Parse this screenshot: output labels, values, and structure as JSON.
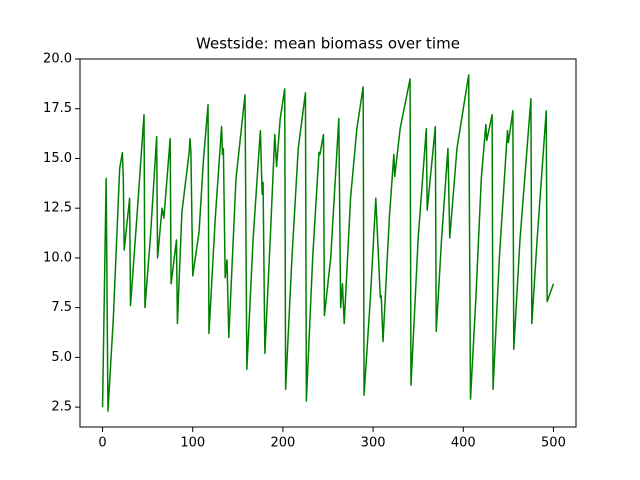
{
  "chart_data": {
    "type": "line",
    "title": "Westside: mean biomass over time",
    "color": "#008000",
    "x": [
      0,
      4,
      6,
      12,
      19,
      22,
      23,
      24,
      30,
      31,
      38,
      46,
      47,
      53,
      60,
      61,
      66,
      68,
      75,
      76,
      82,
      83,
      88,
      96,
      97,
      98,
      100,
      107,
      112,
      117,
      118,
      125,
      132,
      133,
      134,
      136,
      138,
      140,
      148,
      158,
      160,
      167,
      175,
      177,
      178,
      180,
      186,
      191,
      193,
      197,
      202,
      203,
      210,
      217,
      225,
      226,
      233,
      240,
      241,
      245,
      246,
      253,
      262,
      264,
      266,
      268,
      275,
      282,
      289,
      290,
      297,
      303,
      308,
      309,
      311,
      318,
      323,
      324,
      330,
      341,
      342,
      350,
      359,
      360,
      369,
      370,
      376,
      383,
      385,
      393,
      406,
      408,
      414,
      420,
      425,
      426,
      432,
      433,
      440,
      449,
      450,
      455,
      456,
      463,
      475,
      476,
      482,
      492,
      493,
      500
    ],
    "values": [
      2.5,
      14,
      2.3,
      7,
      14.5,
      15.3,
      14,
      10.4,
      13,
      7.6,
      12,
      17.2,
      7.5,
      11,
      16.1,
      10,
      12.5,
      12,
      16,
      8.7,
      10.9,
      6.7,
      12.3,
      15.3,
      16,
      15.3,
      9.1,
      11.3,
      15,
      17.7,
      6.2,
      12,
      16.6,
      15.2,
      15.5,
      9,
      9.9,
      6,
      14,
      18.2,
      4.4,
      11,
      16.4,
      13.2,
      13.8,
      5.2,
      11,
      16.2,
      14.6,
      17,
      18.5,
      3.4,
      10,
      15.5,
      18.3,
      2.8,
      10,
      15.3,
      15.2,
      16.2,
      7.1,
      10,
      17,
      7.5,
      8.7,
      6.7,
      13,
      16.5,
      18.6,
      3.1,
      8,
      13,
      8,
      8.1,
      5.8,
      12,
      15.2,
      14.1,
      16.5,
      19,
      3.6,
      11,
      16.5,
      12.4,
      16.6,
      6.3,
      11,
      15.5,
      11,
      15.5,
      19.2,
      2.9,
      8,
      14,
      16.7,
      15.9,
      17.2,
      3.4,
      10,
      16.4,
      15.8,
      17.4,
      5.4,
      11,
      18,
      6.7,
      11,
      17.4,
      7.8,
      8.7
    ],
    "xlim": [
      -25,
      525
    ],
    "xticks": [
      0,
      100,
      200,
      300,
      400,
      500
    ],
    "ylim": [
      1.5,
      20
    ],
    "yticks": [
      2.5,
      {
        "value": 5,
        "label": "5.0"
      },
      7.5,
      {
        "value": 10,
        "label": "10.0"
      },
      12.5,
      {
        "value": 15,
        "label": "15.0"
      },
      17.5,
      {
        "value": 20,
        "label": "20.0"
      }
    ]
  }
}
